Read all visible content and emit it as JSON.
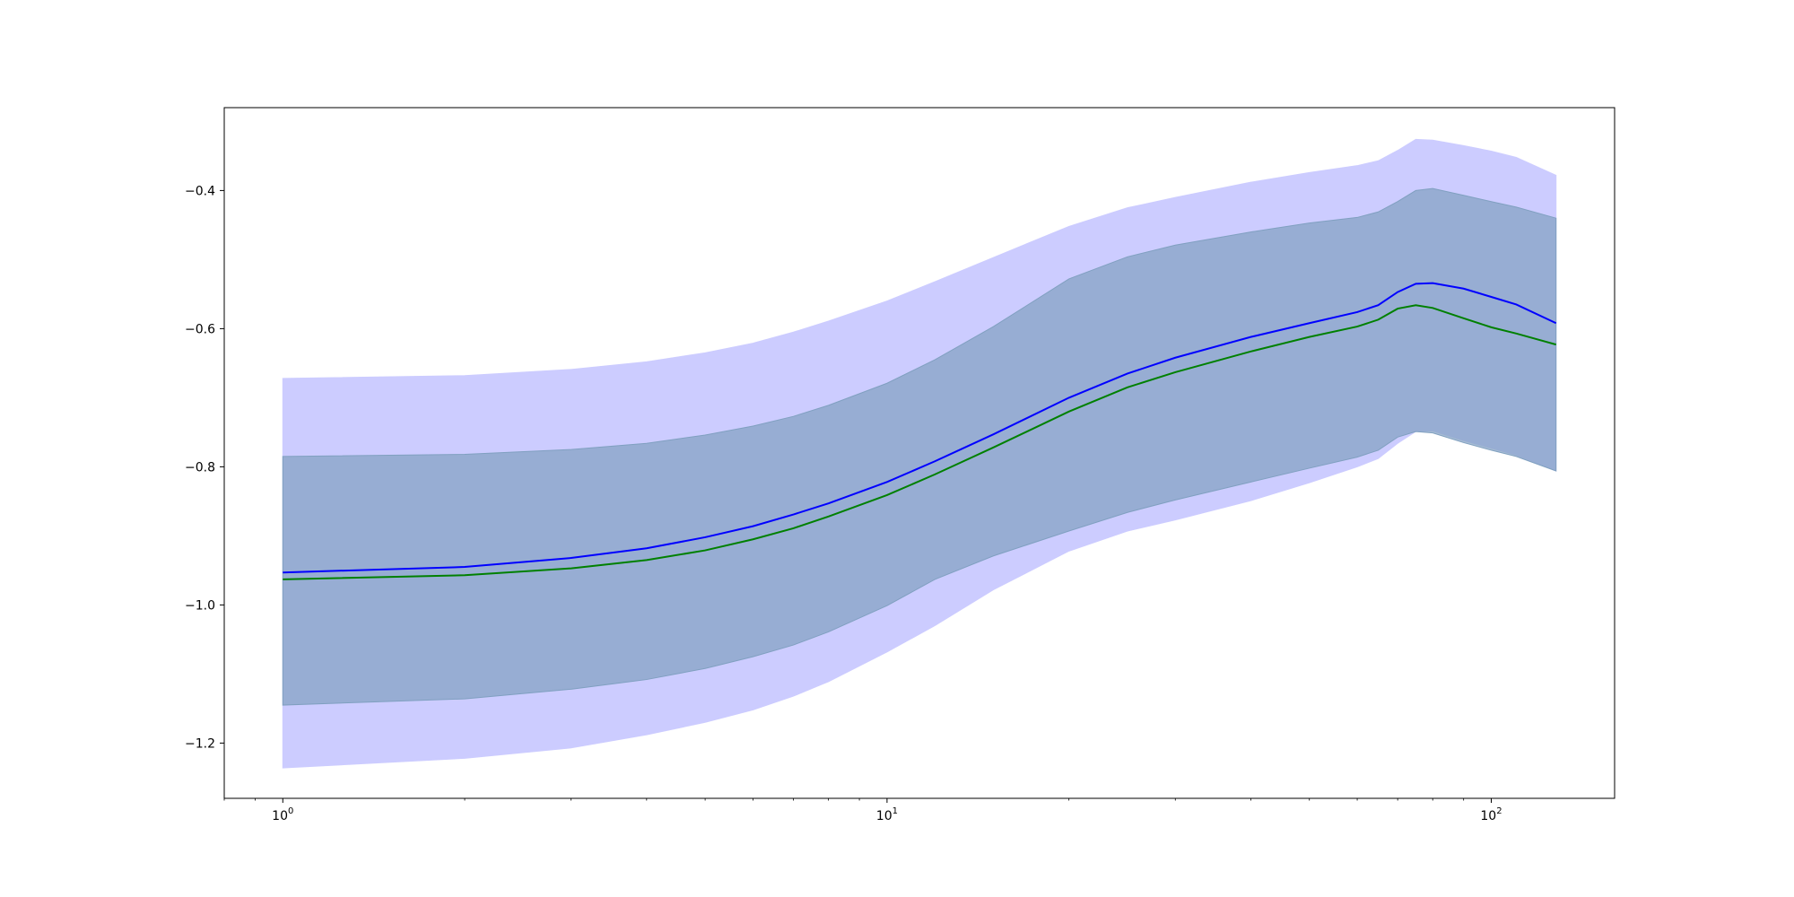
{
  "chart_data": {
    "type": "area",
    "title": "",
    "xlabel": "",
    "ylabel": "",
    "x_scale": "log",
    "xlim": [
      0.8,
      160
    ],
    "ylim": [
      -1.28,
      -0.28
    ],
    "grid": false,
    "legend": "none",
    "x_ticks": [
      {
        "value": 1,
        "base": "10",
        "exp": "0"
      },
      {
        "value": 10,
        "base": "10",
        "exp": "1"
      },
      {
        "value": 100,
        "base": "10",
        "exp": "2"
      }
    ],
    "y_ticks": [
      {
        "value": -0.4,
        "label": "−0.4"
      },
      {
        "value": -0.6,
        "label": "−0.6"
      },
      {
        "value": -0.8,
        "label": "−0.8"
      },
      {
        "value": -1.0,
        "label": "−1.0"
      },
      {
        "value": -1.2,
        "label": "−1.2"
      }
    ],
    "x": [
      1,
      2,
      3,
      4,
      5,
      6,
      7,
      8,
      10,
      12,
      15,
      20,
      25,
      30,
      40,
      50,
      60,
      65,
      70,
      75,
      80,
      90,
      100,
      110,
      128
    ],
    "series": [
      {
        "color": "#0000ff",
        "line": [
          -0.953,
          -0.945,
          -0.932,
          -0.918,
          -0.902,
          -0.886,
          -0.869,
          -0.853,
          -0.822,
          -0.792,
          -0.753,
          -0.7,
          -0.665,
          -0.642,
          -0.612,
          -0.592,
          -0.576,
          -0.566,
          -0.547,
          -0.535,
          -0.534,
          -0.542,
          -0.554,
          -0.565,
          -0.592
        ],
        "band_lower": [
          -1.236,
          -1.222,
          -1.207,
          -1.188,
          -1.17,
          -1.152,
          -1.132,
          -1.111,
          -1.068,
          -1.03,
          -0.978,
          -0.922,
          -0.893,
          -0.877,
          -0.849,
          -0.823,
          -0.8,
          -0.788,
          -0.766,
          -0.749,
          -0.748,
          -0.762,
          -0.773,
          -0.783,
          -0.806
        ],
        "band_upper": [
          -0.672,
          -0.668,
          -0.659,
          -0.648,
          -0.635,
          -0.621,
          -0.605,
          -0.589,
          -0.56,
          -0.532,
          -0.497,
          -0.452,
          -0.425,
          -0.41,
          -0.388,
          -0.374,
          -0.364,
          -0.357,
          -0.342,
          -0.326,
          -0.327,
          -0.335,
          -0.343,
          -0.352,
          -0.378
        ],
        "band_fill": "#ccccff"
      },
      {
        "color": "#008000",
        "line": [
          -0.963,
          -0.957,
          -0.947,
          -0.935,
          -0.921,
          -0.905,
          -0.889,
          -0.872,
          -0.841,
          -0.811,
          -0.772,
          -0.72,
          -0.685,
          -0.663,
          -0.633,
          -0.612,
          -0.597,
          -0.587,
          -0.571,
          -0.566,
          -0.57,
          -0.585,
          -0.598,
          -0.607,
          -0.623
        ],
        "band_lower": [
          -1.145,
          -1.136,
          -1.122,
          -1.108,
          -1.092,
          -1.075,
          -1.058,
          -1.039,
          -1.001,
          -0.963,
          -0.929,
          -0.893,
          -0.866,
          -0.848,
          -0.822,
          -0.802,
          -0.786,
          -0.776,
          -0.757,
          -0.749,
          -0.751,
          -0.765,
          -0.776,
          -0.785,
          -0.806
        ],
        "band_upper": [
          -0.785,
          -0.782,
          -0.775,
          -0.766,
          -0.754,
          -0.741,
          -0.727,
          -0.711,
          -0.679,
          -0.645,
          -0.597,
          -0.528,
          -0.496,
          -0.479,
          -0.46,
          -0.447,
          -0.439,
          -0.431,
          -0.416,
          -0.4,
          -0.397,
          -0.407,
          -0.416,
          -0.424,
          -0.44
        ],
        "band_fill": "#80a0c0"
      }
    ]
  }
}
